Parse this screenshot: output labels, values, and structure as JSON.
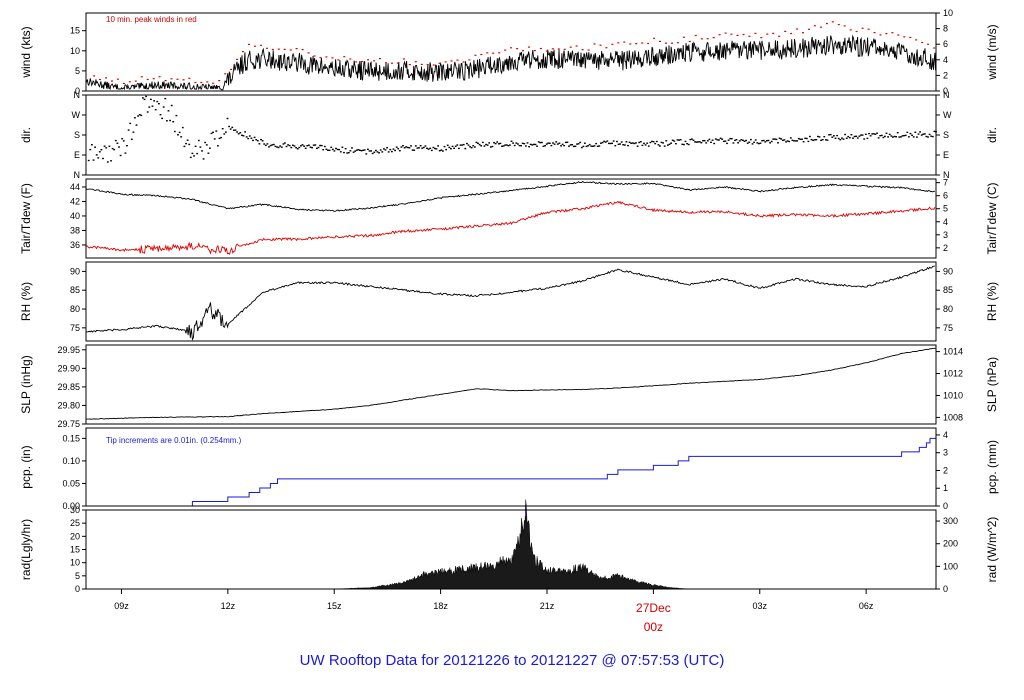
{
  "title": "UW Rooftop Data for 20121226  to  20121227 @ 07:57:53  (UTC)",
  "x_axis": {
    "tick_labels": [
      "09z",
      "12z",
      "15z",
      "18z",
      "21z",
      "27Dec",
      "03z",
      "06z"
    ],
    "day_marker_line2": "00z",
    "hours": [
      9,
      12,
      15,
      18,
      21,
      24,
      27,
      30
    ],
    "range_hours": [
      8.0,
      31.97
    ]
  },
  "panels": [
    {
      "id": "wind",
      "left_label": "wind (kts)",
      "right_label": "wind (m/s)",
      "left_ticks": [
        "0",
        "5",
        "10",
        "15"
      ],
      "left_values": [
        0,
        5,
        10,
        15
      ],
      "left_range": [
        0,
        19.4
      ],
      "right_ticks": [
        "0",
        "2",
        "4",
        "6",
        "8",
        "10"
      ],
      "right_values": [
        0,
        2,
        4,
        6,
        8,
        10
      ],
      "right_range": [
        0,
        10
      ],
      "annotation": "10 min. peak winds in red"
    },
    {
      "id": "dir",
      "left_label": "dir.",
      "right_label": "dir.",
      "left_ticks": [
        "N",
        "E",
        "S",
        "W",
        "N"
      ],
      "left_values": [
        0,
        90,
        180,
        270,
        360
      ],
      "left_range": [
        0,
        360
      ],
      "right_ticks": [
        "N",
        "E",
        "S",
        "W",
        "N"
      ],
      "right_values": [
        0,
        90,
        180,
        270,
        360
      ],
      "right_range": [
        0,
        360
      ]
    },
    {
      "id": "temp",
      "left_label": "Tair/Tdew (F)",
      "right_label": "Tair/Tdew (C)",
      "left_ticks": [
        "36",
        "38",
        "40",
        "42",
        "44"
      ],
      "left_values": [
        36,
        38,
        40,
        42,
        44
      ],
      "left_range": [
        34.2,
        45.1
      ],
      "right_ticks": [
        "2",
        "3",
        "4",
        "5",
        "6",
        "7"
      ],
      "right_values": [
        2,
        3,
        4,
        5,
        6,
        7
      ],
      "right_range": [
        1.22,
        7.28
      ]
    },
    {
      "id": "rh",
      "left_label": "RH (%)",
      "right_label": "RH (%)",
      "left_ticks": [
        "75",
        "80",
        "85",
        "90"
      ],
      "left_values": [
        75,
        80,
        85,
        90
      ],
      "left_range": [
        71.5,
        92.5
      ],
      "right_ticks": [
        "75",
        "80",
        "85",
        "90"
      ],
      "right_values": [
        75,
        80,
        85,
        90
      ],
      "right_range": [
        71.5,
        92.5
      ]
    },
    {
      "id": "slp",
      "left_label": "SLP (inHg)",
      "right_label": "SLP (hPa)",
      "left_ticks": [
        "29.75",
        "29.80",
        "29.85",
        "29.90",
        "29.95"
      ],
      "left_values": [
        29.75,
        29.8,
        29.85,
        29.9,
        29.95
      ],
      "left_range": [
        29.75,
        29.963
      ],
      "right_ticks": [
        "1008",
        "1010",
        "1012",
        "1014"
      ],
      "right_values": [
        1008,
        1010,
        1012,
        1014
      ],
      "right_range": [
        1007.4,
        1014.6
      ]
    },
    {
      "id": "pcp",
      "left_label": "pcp. (in)",
      "right_label": "pcp. (mm)",
      "left_ticks": [
        "0.00",
        "0.05",
        "0.10",
        "0.15"
      ],
      "left_values": [
        0,
        0.05,
        0.1,
        0.15
      ],
      "left_range": [
        0,
        0.173
      ],
      "right_ticks": [
        "0",
        "1",
        "2",
        "3",
        "4"
      ],
      "right_values": [
        0,
        1,
        2,
        3,
        4
      ],
      "right_range": [
        0,
        4.39
      ],
      "annotation": "Tip increments are 0.01in. (0.254mm.)"
    },
    {
      "id": "rad",
      "left_label": "rad(Lgly/hr)",
      "right_label": "rad (W/m^2)",
      "left_ticks": [
        "0",
        "5",
        "10",
        "15",
        "20",
        "25",
        "30"
      ],
      "left_values": [
        0,
        5,
        10,
        15,
        20,
        25,
        30
      ],
      "left_range": [
        0,
        30
      ],
      "right_ticks": [
        "0",
        "100",
        "200",
        "300"
      ],
      "right_values": [
        0,
        100,
        200,
        300
      ],
      "right_range": [
        0,
        348.9
      ]
    }
  ],
  "colors": {
    "tair": "#000000",
    "tdew": "#e00000",
    "peak": "#e00000",
    "pcp": "#1a1adc",
    "footer": "#1a1adc",
    "day": "#d40000"
  },
  "chart_data": [
    {
      "type": "line",
      "title": "",
      "xlabel": "",
      "ylabel": "wind (kts)",
      "ylabel_right": "wind (m/s)",
      "ylim": [
        0,
        19.4
      ],
      "x": [
        8.0,
        9.0,
        10.0,
        11.0,
        11.8,
        12.5,
        13.0,
        14.0,
        15.0,
        16.0,
        17.0,
        18.0,
        19.0,
        20.0,
        21.0,
        22.0,
        23.0,
        24.0,
        25.0,
        26.0,
        27.0,
        28.0,
        29.0,
        30.0,
        31.0,
        31.97
      ],
      "series": [
        {
          "name": "wind",
          "values": [
            2.5,
            0.5,
            1.5,
            1.0,
            0.5,
            7.5,
            8.0,
            7.0,
            5.5,
            5.0,
            5.0,
            4.5,
            5.5,
            7.5,
            8.0,
            7.5,
            7.5,
            8.5,
            9.5,
            10.0,
            10.0,
            10.5,
            11.5,
            11.0,
            9.5,
            7.5
          ]
        },
        {
          "name": "10 min. peak winds",
          "values": [
            4.5,
            2.5,
            3.5,
            3.0,
            2.5,
            11.0,
            11.5,
            10.0,
            8.5,
            7.5,
            7.5,
            7.0,
            8.5,
            11.0,
            10.5,
            11.0,
            11.5,
            12.5,
            13.0,
            14.0,
            14.0,
            15.0,
            17.0,
            15.0,
            13.5,
            11.0
          ]
        }
      ]
    },
    {
      "type": "scatter",
      "title": "",
      "xlabel": "",
      "ylabel": "dir.",
      "ylim": [
        0,
        360
      ],
      "x": [
        8.0,
        9.0,
        9.5,
        10.0,
        10.5,
        11.0,
        11.5,
        12.0,
        13.0,
        14.0,
        15.0,
        16.0,
        17.0,
        18.0,
        19.0,
        20.0,
        21.0,
        22.0,
        23.0,
        24.0,
        25.0,
        26.0,
        27.0,
        28.0,
        29.0,
        30.0,
        31.0,
        31.97
      ],
      "series": [
        {
          "name": "wind direction",
          "values": [
            85,
            120,
            290,
            330,
            240,
            90,
            150,
            220,
            140,
            130,
            115,
            105,
            125,
            120,
            135,
            140,
            140,
            135,
            145,
            140,
            150,
            155,
            150,
            160,
            170,
            175,
            180,
            185
          ]
        }
      ]
    },
    {
      "type": "line",
      "title": "",
      "xlabel": "",
      "ylabel": "Tair/Tdew (F)",
      "ylabel_right": "Tair/Tdew (C)",
      "ylim": [
        34.2,
        45.1
      ],
      "x": [
        8.0,
        9.0,
        10.0,
        11.0,
        12.0,
        13.0,
        14.0,
        15.0,
        16.0,
        17.0,
        18.0,
        19.0,
        20.0,
        21.0,
        22.0,
        23.0,
        24.0,
        25.0,
        26.0,
        27.0,
        28.0,
        29.0,
        30.0,
        31.0,
        31.97
      ],
      "series": [
        {
          "name": "Tair",
          "values": [
            43.8,
            43.0,
            42.8,
            42.3,
            41.0,
            41.6,
            40.9,
            40.7,
            41.1,
            41.7,
            42.5,
            43.0,
            43.5,
            44.1,
            44.7,
            44.4,
            44.5,
            43.6,
            44.0,
            43.4,
            43.9,
            44.3,
            44.1,
            43.9,
            43.3
          ]
        },
        {
          "name": "Tdew",
          "values": [
            35.8,
            35.3,
            35.5,
            35.8,
            35.2,
            36.8,
            36.8,
            37.1,
            37.3,
            37.9,
            38.2,
            38.6,
            39.0,
            40.5,
            41.0,
            41.9,
            40.8,
            40.5,
            40.6,
            40.0,
            40.2,
            40.0,
            40.3,
            40.7,
            41.1
          ]
        }
      ]
    },
    {
      "type": "line",
      "title": "",
      "xlabel": "",
      "ylabel": "RH (%)",
      "ylim": [
        71.5,
        92.5
      ],
      "x": [
        8.0,
        9.0,
        10.0,
        11.0,
        11.5,
        12.0,
        13.0,
        14.0,
        15.0,
        16.0,
        17.0,
        18.0,
        19.0,
        20.0,
        21.0,
        22.0,
        23.0,
        24.0,
        25.0,
        26.0,
        27.0,
        28.0,
        29.0,
        30.0,
        31.0,
        31.97
      ],
      "series": [
        {
          "name": "RH",
          "values": [
            74.0,
            74.5,
            75.5,
            74.0,
            80.0,
            76.0,
            84.5,
            87.0,
            87.0,
            86.0,
            85.0,
            84.0,
            83.5,
            84.5,
            85.5,
            87.5,
            90.5,
            88.5,
            86.5,
            88.0,
            85.5,
            88.0,
            86.5,
            86.0,
            88.5,
            91.5
          ]
        }
      ]
    },
    {
      "type": "line",
      "title": "",
      "xlabel": "",
      "ylabel": "SLP (inHg)",
      "ylabel_right": "SLP (hPa)",
      "ylim": [
        29.75,
        29.963
      ],
      "x": [
        8.0,
        10.0,
        12.0,
        13.0,
        15.0,
        16.0,
        17.0,
        18.0,
        19.0,
        20.0,
        21.0,
        22.0,
        23.0,
        24.0,
        25.0,
        26.0,
        27.0,
        28.0,
        29.0,
        30.0,
        31.0,
        31.97
      ],
      "series": [
        {
          "name": "SLP",
          "values": [
            29.763,
            29.768,
            29.77,
            29.778,
            29.79,
            29.8,
            29.815,
            29.83,
            29.845,
            29.84,
            29.842,
            29.843,
            29.847,
            29.853,
            29.86,
            29.865,
            29.87,
            29.88,
            29.895,
            29.915,
            29.94,
            29.955
          ]
        }
      ]
    },
    {
      "type": "line",
      "title": "",
      "xlabel": "",
      "ylabel": "pcp. (in)",
      "ylabel_right": "pcp. (mm)",
      "ylim": [
        0,
        0.173
      ],
      "x": [
        8.0,
        10.9,
        11.0,
        12.0,
        12.6,
        12.9,
        13.2,
        13.4,
        22.5,
        22.7,
        23.0,
        24.0,
        24.7,
        25.0,
        31.0,
        31.5,
        31.7,
        31.8,
        31.97
      ],
      "series": [
        {
          "name": "precipitation",
          "values": [
            0.0,
            0.0,
            0.01,
            0.02,
            0.03,
            0.04,
            0.05,
            0.06,
            0.06,
            0.07,
            0.08,
            0.09,
            0.1,
            0.11,
            0.12,
            0.13,
            0.14,
            0.15,
            0.16
          ]
        }
      ]
    },
    {
      "type": "area",
      "title": "",
      "xlabel": "",
      "ylabel": "rad(Lgly/hr)",
      "ylabel_right": "rad (W/m^2)",
      "ylim": [
        0,
        30
      ],
      "x": [
        8.0,
        15.0,
        16.0,
        17.0,
        17.5,
        18.0,
        18.5,
        19.0,
        19.5,
        20.0,
        20.2,
        20.4,
        20.6,
        21.0,
        21.5,
        22.0,
        22.5,
        23.0,
        23.5,
        24.0,
        24.5,
        25.0,
        31.97
      ],
      "series": [
        {
          "name": "radiation",
          "values": [
            0.0,
            0.0,
            0.5,
            2.5,
            5.5,
            6.5,
            7.5,
            8.0,
            9.5,
            11.0,
            17.0,
            30.0,
            12.0,
            7.0,
            6.5,
            8.5,
            4.0,
            5.0,
            3.0,
            1.5,
            0.5,
            0.0,
            0.0
          ]
        }
      ]
    }
  ]
}
